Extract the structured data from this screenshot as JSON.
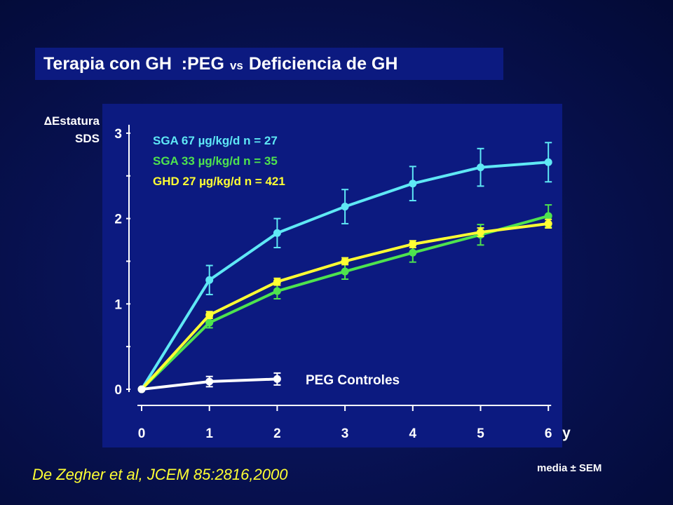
{
  "title": {
    "part1": "Terapia con GH  :PEG",
    "vs": "vs",
    "part2": "Deficiencia de GH"
  },
  "ylabel": {
    "line1": "Estatura",
    "line2": "SDS",
    "delta_symbol": "∆"
  },
  "citation": "De Zegher et al, JCEM 85:2816,2000",
  "footnote": "media ± SEM",
  "colors": {
    "background": "#081254",
    "panel": "#0c1a80",
    "cyan": "#5fe8f5",
    "green": "#4ee34e",
    "yellow": "#ffff33",
    "white": "#ffffff"
  },
  "chart_data": {
    "type": "line",
    "xlabel": "y",
    "ylabel": "∆Estatura SDS",
    "xlim": [
      0,
      6
    ],
    "ylim": [
      0,
      3
    ],
    "x_ticks": [
      0,
      1,
      2,
      3,
      4,
      5,
      6
    ],
    "y_ticks": [
      0,
      1,
      2,
      3
    ],
    "grid": false,
    "legend_position": "top-left",
    "series": [
      {
        "name": "SGA 67 µg/kg/d  n = 27",
        "color": "#5fe8f5",
        "x": [
          0,
          1,
          2,
          3,
          4,
          5,
          6
        ],
        "y": [
          0,
          1.28,
          1.83,
          2.14,
          2.41,
          2.6,
          2.66
        ],
        "err": [
          0,
          0.17,
          0.17,
          0.2,
          0.2,
          0.22,
          0.23
        ]
      },
      {
        "name": "SGA 33 µg/kg/d  n = 35",
        "color": "#4ee34e",
        "x": [
          0,
          1,
          2,
          3,
          4,
          5,
          6
        ],
        "y": [
          0,
          0.78,
          1.15,
          1.38,
          1.6,
          1.81,
          2.03
        ],
        "err": [
          0,
          0.06,
          0.09,
          0.09,
          0.11,
          0.12,
          0.13
        ]
      },
      {
        "name": "GHD 27 µg/kg/d  n = 421",
        "color": "#ffff33",
        "x": [
          0,
          1,
          2,
          3,
          4,
          5,
          6
        ],
        "y": [
          0,
          0.87,
          1.26,
          1.5,
          1.7,
          1.84,
          1.94
        ],
        "err": [
          0,
          0.04,
          0.04,
          0.04,
          0.04,
          0.05,
          0.05
        ]
      },
      {
        "name": "PEG Controles",
        "color": "#ffffff",
        "x": [
          0,
          1,
          2
        ],
        "y": [
          0,
          0.09,
          0.12
        ],
        "err": [
          0,
          0.06,
          0.07
        ]
      }
    ]
  }
}
